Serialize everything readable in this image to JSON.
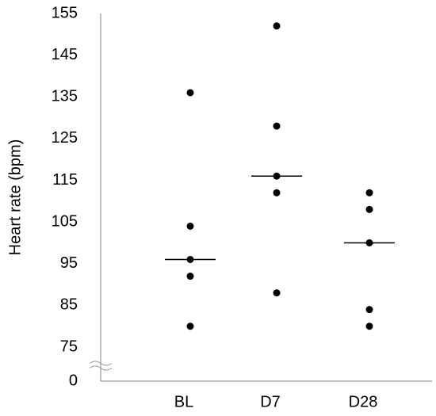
{
  "chart_data": {
    "type": "dot",
    "y_label": "Heart rate (bpm)",
    "categories": [
      "BL",
      "D7",
      "D28"
    ],
    "values": [
      [
        136,
        104,
        96,
        92,
        80
      ],
      [
        152,
        128,
        116,
        112,
        88
      ],
      [
        112,
        108,
        100,
        84,
        80
      ]
    ],
    "medians": [
      96,
      116,
      100
    ],
    "color": "#000000",
    "ylim": [
      0,
      155
    ],
    "yticks": [
      0,
      75,
      85,
      95,
      105,
      115,
      125,
      135,
      145,
      155
    ],
    "axis_break": true,
    "grid": false
  }
}
